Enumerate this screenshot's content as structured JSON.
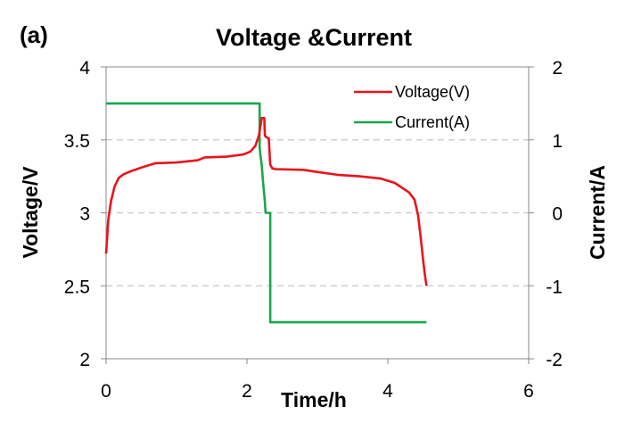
{
  "panel_label": "(a)",
  "chart_data": {
    "type": "line",
    "title": "Voltage &Current",
    "xlabel": "Time/h",
    "ylabel_left": "Voltage/V",
    "ylabel_right": "Current/A",
    "xlim": [
      0,
      6
    ],
    "ylim_left": [
      2,
      4
    ],
    "ylim_right": [
      -2,
      2
    ],
    "x_ticks": [
      "0",
      "2",
      "4",
      "6"
    ],
    "y_left_ticks": [
      "2",
      "2.5",
      "3",
      "3.5",
      "4"
    ],
    "y_right_ticks": [
      "-2",
      "-1",
      "0",
      "1",
      "2"
    ],
    "grid": "horizontal dashed",
    "legend_position": "top-right",
    "series": [
      {
        "name": "Voltage(V)",
        "axis": "left",
        "color": "#e8141b",
        "points": [
          [
            0.0,
            2.72
          ],
          [
            0.03,
            2.95
          ],
          [
            0.07,
            3.08
          ],
          [
            0.12,
            3.18
          ],
          [
            0.18,
            3.24
          ],
          [
            0.25,
            3.265
          ],
          [
            0.35,
            3.285
          ],
          [
            0.5,
            3.31
          ],
          [
            0.7,
            3.34
          ],
          [
            1.0,
            3.345
          ],
          [
            1.3,
            3.36
          ],
          [
            1.4,
            3.38
          ],
          [
            1.7,
            3.385
          ],
          [
            1.95,
            3.4
          ],
          [
            2.05,
            3.42
          ],
          [
            2.12,
            3.46
          ],
          [
            2.17,
            3.53
          ],
          [
            2.2,
            3.62
          ],
          [
            2.21,
            3.65
          ],
          [
            2.245,
            3.65
          ],
          [
            2.255,
            3.53
          ],
          [
            2.27,
            3.52
          ],
          [
            2.31,
            3.51
          ],
          [
            2.32,
            3.42
          ],
          [
            2.33,
            3.33
          ],
          [
            2.36,
            3.305
          ],
          [
            2.4,
            3.3
          ],
          [
            2.8,
            3.295
          ],
          [
            3.0,
            3.28
          ],
          [
            3.3,
            3.26
          ],
          [
            3.6,
            3.25
          ],
          [
            3.9,
            3.235
          ],
          [
            4.1,
            3.205
          ],
          [
            4.3,
            3.14
          ],
          [
            4.38,
            3.09
          ],
          [
            4.43,
            2.98
          ],
          [
            4.47,
            2.82
          ],
          [
            4.5,
            2.68
          ],
          [
            4.53,
            2.56
          ],
          [
            4.55,
            2.5
          ]
        ]
      },
      {
        "name": "Current(A)",
        "axis": "right",
        "color": "#1aa64b",
        "points": [
          [
            0.0,
            1.5
          ],
          [
            2.18,
            1.5
          ],
          [
            2.18,
            0.9
          ],
          [
            2.19,
            0.8
          ],
          [
            2.21,
            0.65
          ],
          [
            2.23,
            0.4
          ],
          [
            2.25,
            0.2
          ],
          [
            2.265,
            0.0
          ],
          [
            2.33,
            0.0
          ],
          [
            2.33,
            -1.5
          ],
          [
            4.55,
            -1.5
          ]
        ]
      }
    ]
  }
}
